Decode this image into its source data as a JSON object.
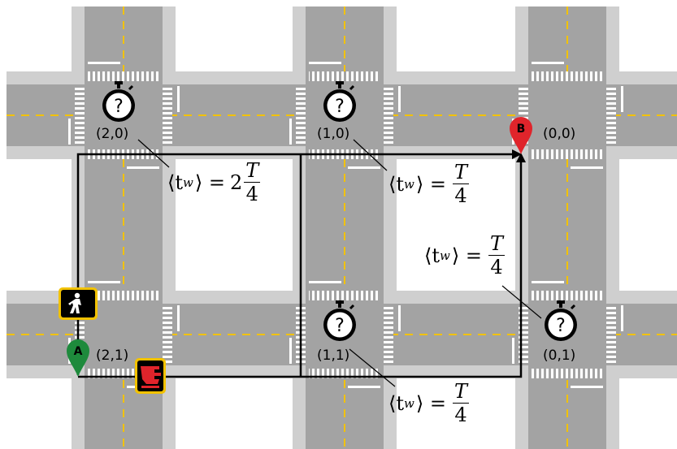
{
  "intersections": [
    {
      "id": "2,0",
      "label": "(2,0)",
      "unknown": "?"
    },
    {
      "id": "1,0",
      "label": "(1,0)",
      "unknown": "?"
    },
    {
      "id": "0,0",
      "label": "(0,0)"
    },
    {
      "id": "2,1",
      "label": "(2,1)"
    },
    {
      "id": "1,1",
      "label": "(1,1)",
      "unknown": "?"
    },
    {
      "id": "0,1",
      "label": "(0,1)",
      "unknown": "?"
    }
  ],
  "markers": {
    "start": {
      "letter": "A",
      "color": "#1e8a3c"
    },
    "end": {
      "letter": "B",
      "color": "#e0242b"
    }
  },
  "annotations": {
    "wait_20": {
      "lhs": "⟨t",
      "sub": "w",
      "rhs": "⟩ =",
      "coef": "2",
      "num": "T",
      "den": "4"
    },
    "wait_10": {
      "lhs": "⟨t",
      "sub": "w",
      "rhs": "⟩ =",
      "coef": "",
      "num": "T",
      "den": "4"
    },
    "wait_01": {
      "lhs": "⟨t",
      "sub": "w",
      "rhs": "⟩ =",
      "coef": "",
      "num": "T",
      "den": "4"
    },
    "wait_11": {
      "lhs": "⟨t",
      "sub": "w",
      "rhs": "⟩ =",
      "coef": "",
      "num": "T",
      "den": "4"
    }
  },
  "signals": {
    "walk": "walk-signal",
    "dont_walk": "dont-walk-signal"
  },
  "colors": {
    "road": "#a3a3a3",
    "sidewalk": "#cfcfcf",
    "lane_line": "#f2c200",
    "marking": "#ffffff",
    "signal_border": "#f2c200",
    "dont_walk_hand": "#e0242b"
  }
}
